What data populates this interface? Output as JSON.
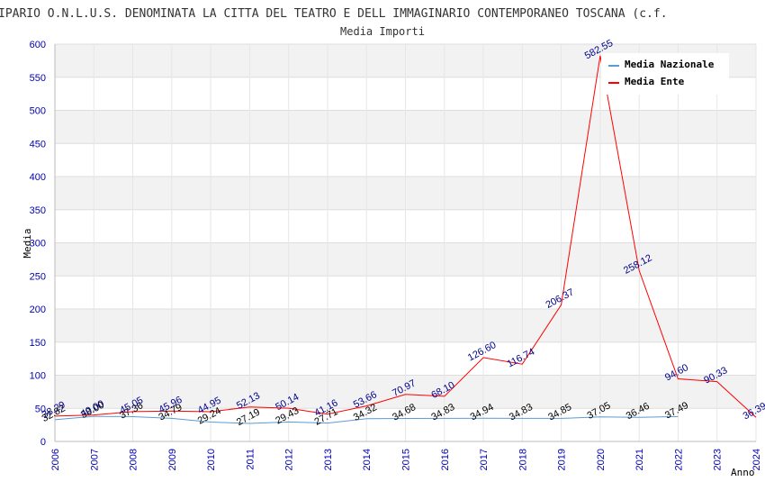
{
  "chart_data": {
    "type": "line",
    "title": "IPARIO O.N.L.U.S. DENOMINATA LA CITTA DEL TEATRO E DELL IMMAGINARIO CONTEMPORANEO TOSCANA (c.f.",
    "subtitle": "Media Importi",
    "xlabel": "Anno",
    "ylabel": "Media",
    "ylim": [
      0,
      600
    ],
    "yticks": [
      0,
      50,
      100,
      150,
      200,
      250,
      300,
      350,
      400,
      450,
      500,
      550,
      600
    ],
    "x": [
      2006,
      2007,
      2008,
      2009,
      2010,
      2011,
      2012,
      2013,
      2014,
      2015,
      2016,
      2017,
      2018,
      2019,
      2020,
      2021,
      2022,
      2023,
      2024
    ],
    "grid": true,
    "legend_position": "top-right",
    "series": [
      {
        "name": "Media Nazionale",
        "color": "#5b9bd5",
        "label_color": "#000000",
        "x": [
          2006,
          2007,
          2008,
          2009,
          2010,
          2011,
          2012,
          2013,
          2014,
          2015,
          2016,
          2017,
          2018,
          2019,
          2020,
          2021,
          2022
        ],
        "values": [
          32.82,
          38.0,
          37.36,
          34.79,
          29.24,
          27.19,
          29.43,
          27.71,
          34.32,
          34.68,
          34.83,
          34.94,
          34.83,
          34.85,
          37.05,
          36.46,
          37.49
        ],
        "labels": [
          "32.82",
          "38.00",
          "37.36",
          "34.79",
          "29.24",
          "27.19",
          "29.43",
          "27.71",
          "34.32",
          "34.68",
          "34.83",
          "34.94",
          "34.83",
          "34.85",
          "37.05",
          "36.46",
          "37.49"
        ]
      },
      {
        "name": "Media Ente",
        "color": "#ff0000",
        "label_color": "#00008b",
        "x": [
          2006,
          2007,
          2008,
          2009,
          2010,
          2011,
          2012,
          2013,
          2014,
          2015,
          2016,
          2017,
          2018,
          2019,
          2020,
          2021,
          2022,
          2023,
          2024
        ],
        "values": [
          38.29,
          40.0,
          45.05,
          45.96,
          44.95,
          52.13,
          50.14,
          41.16,
          53.66,
          70.97,
          68.1,
          126.6,
          116.74,
          206.37,
          582.55,
          258.12,
          94.6,
          90.33,
          36.39
        ],
        "labels": [
          "38.29",
          "40.00",
          "45.05",
          "45.96",
          "44.95",
          "52.13",
          "50.14",
          "41.16",
          "53.66",
          "70.97",
          "68.10",
          "126.60",
          "116.74",
          "206.37",
          "582.55",
          "258.12",
          "94.60",
          "90.33",
          "36.39"
        ]
      }
    ]
  }
}
